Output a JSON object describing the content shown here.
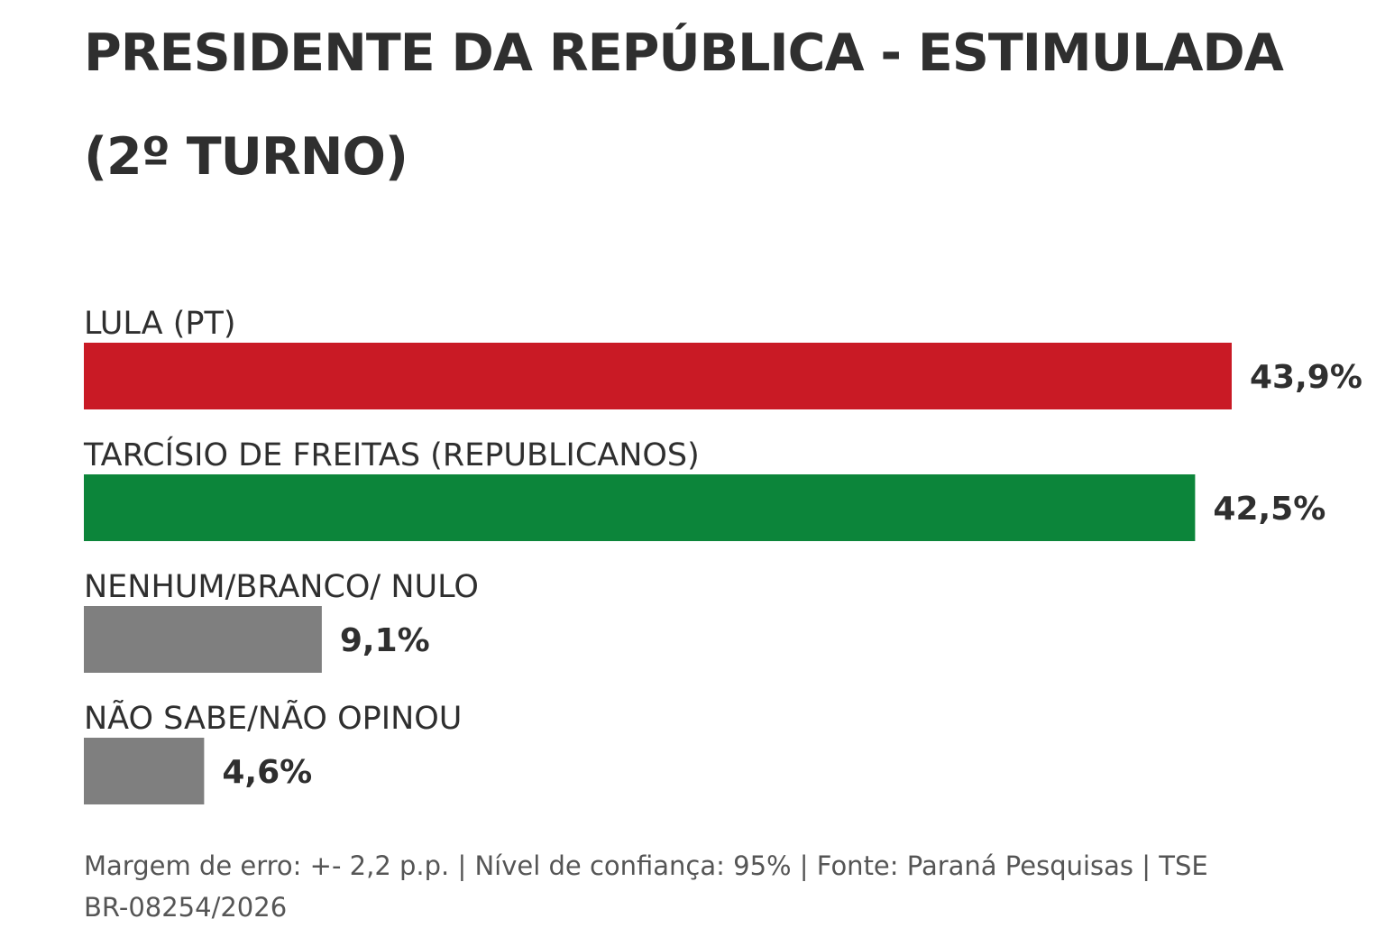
{
  "chart_data": {
    "type": "bar",
    "orientation": "horizontal",
    "title": "PRESIDENTE DA REPÚBLICA - ESTIMULADA (2º TURNO)",
    "categories": [
      "LULA (PT)",
      "TARCÍSIO DE FREITAS (REPUBLICANOS)",
      "NENHUM/BRANCO/ NULO",
      "NÃO SABE/NÃO OPINOU"
    ],
    "values": [
      43.9,
      42.5,
      9.1,
      4.6
    ],
    "value_labels": [
      "43,9%",
      "42,5%",
      "9,1%",
      "4,6%"
    ],
    "colors": [
      "#c91a25",
      "#0c853a",
      "#7f7f7f",
      "#7f7f7f"
    ],
    "unit": "%",
    "grid": false,
    "legend": "none"
  },
  "footer": {
    "line1": "Margem de erro: +- 2,2 p.p. | Nível de confiança: 95% | Fonte: Paraná Pesquisas | TSE",
    "line2": "BR-08254/2026"
  }
}
